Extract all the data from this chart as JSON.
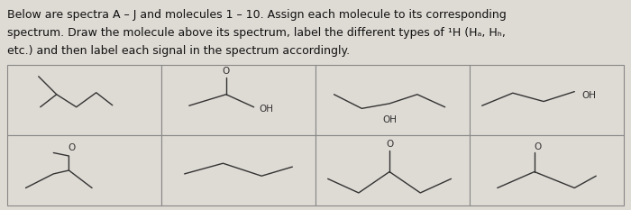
{
  "background_color": "#dedad4",
  "cell_bg": "#dedad4",
  "border_color": "#888888",
  "text_color": "#111111",
  "title_lines": [
    "Below are spectra A – J and molecules 1 – 10. Assign each molecule to its corresponding",
    "spectrum. Draw the molecule above its spectrum, label the different types of ¹H (Hₐ, Hₕ,",
    "etc.) and then label each signal in the spectrum accordingly."
  ],
  "title_fontsize": 9.0,
  "line_color": "#333333",
  "line_width": 1.0
}
